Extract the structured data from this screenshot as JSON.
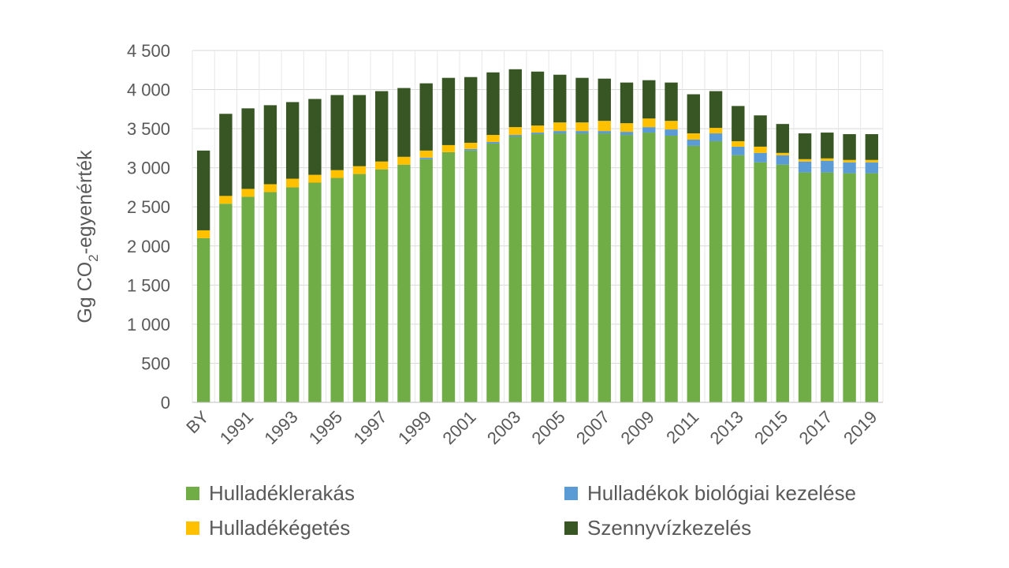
{
  "chart_data": {
    "type": "bar",
    "stacked": true,
    "ylabel_main": "Gg CO",
    "ylabel_sub": "2",
    "ylabel_rest": "-egyenérték",
    "ylim": [
      0,
      4500
    ],
    "yticks": [
      0,
      500,
      1000,
      1500,
      2000,
      2500,
      3000,
      3500,
      4000,
      4500
    ],
    "ytick_labels": [
      "0",
      "500",
      "1 000",
      "1 500",
      "2 000",
      "2 500",
      "3 000",
      "3 500",
      "4 000",
      "4 500"
    ],
    "grid": true,
    "legend_position": "bottom",
    "categories": [
      "BY",
      "1990",
      "1991",
      "1992",
      "1993",
      "1994",
      "1995",
      "1996",
      "1997",
      "1998",
      "1999",
      "2000",
      "2001",
      "2002",
      "2003",
      "2004",
      "2005",
      "2006",
      "2007",
      "2008",
      "2009",
      "2010",
      "2011",
      "2012",
      "2013",
      "2014",
      "2015",
      "2016",
      "2017",
      "2018",
      "2019"
    ],
    "xtick_labels": [
      "BY",
      "",
      "1991",
      "",
      "1993",
      "",
      "1995",
      "",
      "1997",
      "",
      "1999",
      "",
      "2001",
      "",
      "2003",
      "",
      "2005",
      "",
      "2007",
      "",
      "2009",
      "",
      "2011",
      "",
      "2013",
      "",
      "2015",
      "",
      "2017",
      "",
      "2019"
    ],
    "series": [
      {
        "name": "Hulladéklerakás",
        "color": "#70AD47",
        "values": [
          2100,
          2540,
          2630,
          2690,
          2750,
          2810,
          2870,
          2920,
          2980,
          3040,
          3110,
          3200,
          3220,
          3310,
          3400,
          3430,
          3440,
          3440,
          3440,
          3420,
          3450,
          3410,
          3280,
          3340,
          3160,
          3070,
          3040,
          2940,
          2940,
          2930,
          2930
        ]
      },
      {
        "name": "Hulladékok biológiai kezelése",
        "color": "#5B9BD5",
        "values": [
          0,
          0,
          0,
          0,
          0,
          0,
          0,
          0,
          0,
          0,
          20,
          0,
          20,
          20,
          20,
          20,
          30,
          30,
          30,
          40,
          70,
          80,
          80,
          100,
          110,
          120,
          120,
          140,
          150,
          140,
          140
        ]
      },
      {
        "name": "Hulladékégetés",
        "color": "#FFC000",
        "values": [
          100,
          100,
          100,
          100,
          110,
          100,
          100,
          100,
          100,
          100,
          90,
          90,
          80,
          90,
          100,
          90,
          110,
          110,
          130,
          110,
          110,
          110,
          80,
          70,
          70,
          80,
          30,
          30,
          30,
          30,
          30
        ]
      },
      {
        "name": "Szennyvízkezelés",
        "color": "#375623",
        "values": [
          1020,
          1050,
          1030,
          1010,
          980,
          970,
          960,
          910,
          900,
          880,
          860,
          860,
          840,
          800,
          740,
          690,
          610,
          570,
          540,
          520,
          490,
          490,
          500,
          470,
          450,
          400,
          370,
          330,
          330,
          330,
          330
        ]
      }
    ]
  }
}
